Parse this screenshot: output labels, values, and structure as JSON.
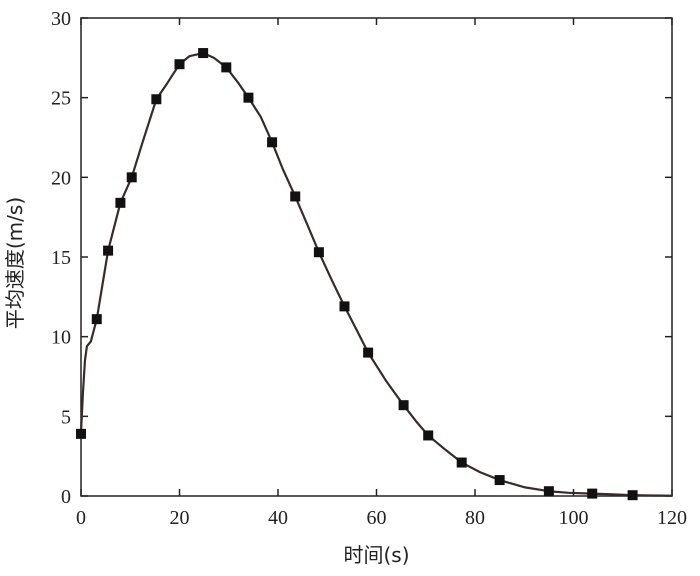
{
  "chart_data": {
    "type": "line",
    "title": "",
    "xlabel": "时间(s)",
    "ylabel": "平均速度(m/s)",
    "xlim": [
      0,
      120
    ],
    "ylim": [
      0,
      30
    ],
    "x_ticks": [
      0,
      20,
      40,
      60,
      80,
      100,
      120
    ],
    "y_ticks": [
      0,
      5,
      10,
      15,
      20,
      25,
      30
    ],
    "grid": false,
    "legend": "none",
    "series": [
      {
        "marker": "square",
        "curve": [
          [
            0.0,
            4.0
          ],
          [
            0.4,
            6.5
          ],
          [
            0.8,
            8.5
          ],
          [
            1.2,
            9.4
          ],
          [
            2.0,
            9.7
          ],
          [
            3.2,
            11.1
          ],
          [
            5.5,
            15.4
          ],
          [
            8.0,
            18.4
          ],
          [
            10.3,
            20.0
          ],
          [
            12.5,
            22.2
          ],
          [
            15.3,
            24.9
          ],
          [
            17.5,
            25.9
          ],
          [
            20.0,
            27.1
          ],
          [
            22.0,
            27.6
          ],
          [
            24.8,
            27.8
          ],
          [
            27.0,
            27.5
          ],
          [
            29.5,
            26.9
          ],
          [
            32.0,
            25.9
          ],
          [
            34.0,
            25.0
          ],
          [
            36.5,
            23.8
          ],
          [
            38.8,
            22.2
          ],
          [
            41.0,
            20.5
          ],
          [
            43.5,
            18.8
          ],
          [
            46.0,
            17.0
          ],
          [
            48.3,
            15.3
          ],
          [
            51.0,
            13.5
          ],
          [
            53.5,
            11.9
          ],
          [
            56.0,
            10.4
          ],
          [
            58.3,
            9.0
          ],
          [
            62.0,
            7.2
          ],
          [
            65.5,
            5.7
          ],
          [
            68.0,
            4.7
          ],
          [
            70.5,
            3.8
          ],
          [
            74.0,
            2.9
          ],
          [
            77.3,
            2.1
          ],
          [
            81.0,
            1.5
          ],
          [
            85.0,
            1.0
          ],
          [
            90.0,
            0.55
          ],
          [
            95.0,
            0.3
          ],
          [
            99.0,
            0.2
          ],
          [
            103.8,
            0.15
          ],
          [
            108.0,
            0.1
          ],
          [
            112.0,
            0.05
          ],
          [
            116.0,
            0.03
          ],
          [
            120.0,
            0.02
          ]
        ],
        "points": [
          [
            0.0,
            3.9
          ],
          [
            3.2,
            11.1
          ],
          [
            5.5,
            15.4
          ],
          [
            8.0,
            18.4
          ],
          [
            10.3,
            20.0
          ],
          [
            15.3,
            24.9
          ],
          [
            20.0,
            27.1
          ],
          [
            24.8,
            27.8
          ],
          [
            29.5,
            26.9
          ],
          [
            34.0,
            25.0
          ],
          [
            38.8,
            22.2
          ],
          [
            43.5,
            18.8
          ],
          [
            48.3,
            15.3
          ],
          [
            53.5,
            11.9
          ],
          [
            58.3,
            9.0
          ],
          [
            65.5,
            5.7
          ],
          [
            70.5,
            3.8
          ],
          [
            77.3,
            2.1
          ],
          [
            85.0,
            1.0
          ],
          [
            95.0,
            0.3
          ],
          [
            103.8,
            0.15
          ],
          [
            112.0,
            0.05
          ]
        ]
      }
    ]
  },
  "style": {
    "line_color": "#3a2a2a",
    "marker_color": "#111111",
    "axis_color": "#222222",
    "background": "#ffffff"
  }
}
